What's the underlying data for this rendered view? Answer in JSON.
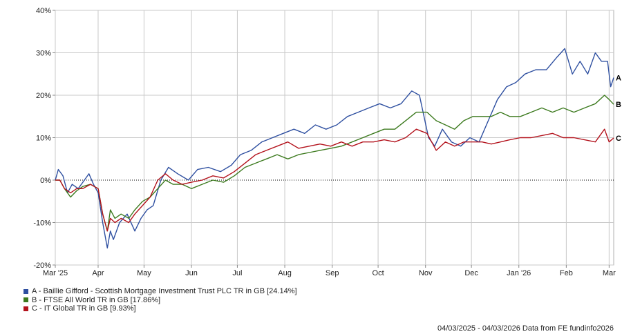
{
  "chart_data": {
    "type": "line",
    "y_ticks": [
      "40%",
      "30%",
      "20%",
      "10%",
      "0%",
      "-10%",
      "-20%"
    ],
    "ylim": [
      -20,
      40
    ],
    "grid": true,
    "x_ticks": [
      {
        "label": "Mar '25",
        "date": "2025-03-04"
      },
      {
        "label": "Apr",
        "date": "2025-04-01"
      },
      {
        "label": "May",
        "date": "2025-05-01"
      },
      {
        "label": "Jun",
        "date": "2025-06-01"
      },
      {
        "label": "Jul",
        "date": "2025-07-01"
      },
      {
        "label": "Aug",
        "date": "2025-08-01"
      },
      {
        "label": "Sep",
        "date": "2025-09-01"
      },
      {
        "label": "Oct",
        "date": "2025-10-01"
      },
      {
        "label": "Nov",
        "date": "2025-11-01"
      },
      {
        "label": "Dec",
        "date": "2025-12-01"
      },
      {
        "label": "Jan '26",
        "date": "2026-01-01"
      },
      {
        "label": "Feb",
        "date": "2026-02-01"
      },
      {
        "label": "Mar",
        "date": "2026-03-01"
      }
    ],
    "xlim": [
      "2025-03-04",
      "2026-03-04"
    ],
    "series": [
      {
        "tag": "A",
        "name": "A - Baillie Gifford - Scottish Mortgage Investment Trust PLC TR in GB [24.14%]",
        "color": "#2e4fa0",
        "points": [
          [
            "2025-03-04",
            0
          ],
          [
            "2025-03-06",
            2.5
          ],
          [
            "2025-03-09",
            1
          ],
          [
            "2025-03-12",
            -3
          ],
          [
            "2025-03-15",
            -1
          ],
          [
            "2025-03-19",
            -2
          ],
          [
            "2025-03-23",
            0
          ],
          [
            "2025-03-26",
            1.5
          ],
          [
            "2025-03-29",
            -1
          ],
          [
            "2025-04-01",
            -3
          ],
          [
            "2025-04-04",
            -10
          ],
          [
            "2025-04-07",
            -16
          ],
          [
            "2025-04-09",
            -12
          ],
          [
            "2025-04-11",
            -14
          ],
          [
            "2025-04-15",
            -10
          ],
          [
            "2025-04-20",
            -8
          ],
          [
            "2025-04-25",
            -12
          ],
          [
            "2025-04-29",
            -9
          ],
          [
            "2025-05-03",
            -7
          ],
          [
            "2025-05-07",
            -6
          ],
          [
            "2025-05-12",
            0
          ],
          [
            "2025-05-17",
            3
          ],
          [
            "2025-05-23",
            1.5
          ],
          [
            "2025-05-30",
            0
          ],
          [
            "2025-06-05",
            2.5
          ],
          [
            "2025-06-12",
            3
          ],
          [
            "2025-06-20",
            2
          ],
          [
            "2025-06-27",
            3.5
          ],
          [
            "2025-07-03",
            6
          ],
          [
            "2025-07-10",
            7
          ],
          [
            "2025-07-17",
            9
          ],
          [
            "2025-07-24",
            10
          ],
          [
            "2025-07-31",
            11
          ],
          [
            "2025-08-07",
            12
          ],
          [
            "2025-08-14",
            11
          ],
          [
            "2025-08-21",
            13
          ],
          [
            "2025-08-28",
            12
          ],
          [
            "2025-09-04",
            13
          ],
          [
            "2025-09-11",
            15
          ],
          [
            "2025-09-18",
            16
          ],
          [
            "2025-09-25",
            17
          ],
          [
            "2025-10-02",
            18
          ],
          [
            "2025-10-09",
            17
          ],
          [
            "2025-10-16",
            18
          ],
          [
            "2025-10-23",
            21
          ],
          [
            "2025-10-28",
            20
          ],
          [
            "2025-11-03",
            10
          ],
          [
            "2025-11-07",
            8
          ],
          [
            "2025-11-12",
            12
          ],
          [
            "2025-11-18",
            9
          ],
          [
            "2025-11-24",
            8
          ],
          [
            "2025-11-30",
            10
          ],
          [
            "2025-12-06",
            9
          ],
          [
            "2025-12-12",
            14
          ],
          [
            "2025-12-18",
            19
          ],
          [
            "2025-12-24",
            22
          ],
          [
            "2025-12-30",
            23
          ],
          [
            "2026-01-05",
            25
          ],
          [
            "2026-01-12",
            26
          ],
          [
            "2026-01-19",
            26
          ],
          [
            "2026-01-26",
            29
          ],
          [
            "2026-01-31",
            31
          ],
          [
            "2026-02-05",
            25
          ],
          [
            "2026-02-10",
            28
          ],
          [
            "2026-02-15",
            25
          ],
          [
            "2026-02-20",
            30
          ],
          [
            "2026-02-24",
            28
          ],
          [
            "2026-02-28",
            28
          ],
          [
            "2026-03-02",
            22
          ],
          [
            "2026-03-04",
            24.14
          ]
        ]
      },
      {
        "tag": "B",
        "name": "B - FTSE All World TR in GB [17.86%]",
        "color": "#3c7a1e",
        "points": [
          [
            "2025-03-04",
            0
          ],
          [
            "2025-03-07",
            0
          ],
          [
            "2025-03-10",
            -2
          ],
          [
            "2025-03-14",
            -4
          ],
          [
            "2025-03-18",
            -2.5
          ],
          [
            "2025-03-22",
            -1.5
          ],
          [
            "2025-03-27",
            -1
          ],
          [
            "2025-04-01",
            -2
          ],
          [
            "2025-04-04",
            -8
          ],
          [
            "2025-04-07",
            -12
          ],
          [
            "2025-04-09",
            -7
          ],
          [
            "2025-04-12",
            -9
          ],
          [
            "2025-04-16",
            -8
          ],
          [
            "2025-04-21",
            -9
          ],
          [
            "2025-04-25",
            -7
          ],
          [
            "2025-04-30",
            -5
          ],
          [
            "2025-05-05",
            -4
          ],
          [
            "2025-05-10",
            -2
          ],
          [
            "2025-05-15",
            0
          ],
          [
            "2025-05-20",
            -1
          ],
          [
            "2025-05-26",
            -1
          ],
          [
            "2025-06-01",
            -2
          ],
          [
            "2025-06-08",
            -1
          ],
          [
            "2025-06-15",
            0
          ],
          [
            "2025-06-22",
            -0.5
          ],
          [
            "2025-06-29",
            1
          ],
          [
            "2025-07-06",
            3
          ],
          [
            "2025-07-13",
            4
          ],
          [
            "2025-07-20",
            5
          ],
          [
            "2025-07-27",
            6
          ],
          [
            "2025-08-03",
            5
          ],
          [
            "2025-08-10",
            6
          ],
          [
            "2025-08-17",
            6.5
          ],
          [
            "2025-08-24",
            7
          ],
          [
            "2025-08-31",
            7.5
          ],
          [
            "2025-09-07",
            8
          ],
          [
            "2025-09-14",
            9
          ],
          [
            "2025-09-21",
            10
          ],
          [
            "2025-09-28",
            11
          ],
          [
            "2025-10-05",
            12
          ],
          [
            "2025-10-12",
            12
          ],
          [
            "2025-10-19",
            14
          ],
          [
            "2025-10-26",
            16
          ],
          [
            "2025-11-02",
            16
          ],
          [
            "2025-11-08",
            14
          ],
          [
            "2025-11-14",
            13
          ],
          [
            "2025-11-20",
            12
          ],
          [
            "2025-11-26",
            14
          ],
          [
            "2025-12-02",
            15
          ],
          [
            "2025-12-08",
            15
          ],
          [
            "2025-12-14",
            15
          ],
          [
            "2025-12-20",
            16
          ],
          [
            "2025-12-26",
            15
          ],
          [
            "2026-01-02",
            15
          ],
          [
            "2026-01-09",
            16
          ],
          [
            "2026-01-16",
            17
          ],
          [
            "2026-01-23",
            16
          ],
          [
            "2026-01-30",
            17
          ],
          [
            "2026-02-06",
            16
          ],
          [
            "2026-02-13",
            17
          ],
          [
            "2026-02-20",
            18
          ],
          [
            "2026-02-26",
            20
          ],
          [
            "2026-03-01",
            19
          ],
          [
            "2026-03-04",
            17.86
          ]
        ]
      },
      {
        "tag": "C",
        "name": "C - IT Global TR in GB [9.93%]",
        "color": "#b3121c",
        "points": [
          [
            "2025-03-04",
            0
          ],
          [
            "2025-03-07",
            0
          ],
          [
            "2025-03-10",
            -2
          ],
          [
            "2025-03-14",
            -3
          ],
          [
            "2025-03-18",
            -2
          ],
          [
            "2025-03-22",
            -2
          ],
          [
            "2025-03-27",
            -1
          ],
          [
            "2025-04-01",
            -2
          ],
          [
            "2025-04-04",
            -8
          ],
          [
            "2025-04-07",
            -12
          ],
          [
            "2025-04-09",
            -9
          ],
          [
            "2025-04-12",
            -10
          ],
          [
            "2025-04-16",
            -9
          ],
          [
            "2025-04-21",
            -10
          ],
          [
            "2025-04-25",
            -8
          ],
          [
            "2025-04-30",
            -6
          ],
          [
            "2025-05-05",
            -4
          ],
          [
            "2025-05-10",
            0
          ],
          [
            "2025-05-15",
            1.5
          ],
          [
            "2025-05-20",
            0
          ],
          [
            "2025-05-26",
            -1
          ],
          [
            "2025-06-01",
            -0.5
          ],
          [
            "2025-06-08",
            0
          ],
          [
            "2025-06-15",
            1
          ],
          [
            "2025-06-22",
            0.5
          ],
          [
            "2025-06-29",
            2
          ],
          [
            "2025-07-06",
            4
          ],
          [
            "2025-07-13",
            6
          ],
          [
            "2025-07-20",
            7
          ],
          [
            "2025-07-27",
            8
          ],
          [
            "2025-08-03",
            9
          ],
          [
            "2025-08-10",
            7.5
          ],
          [
            "2025-08-17",
            8
          ],
          [
            "2025-08-24",
            8.5
          ],
          [
            "2025-08-31",
            8
          ],
          [
            "2025-09-07",
            9
          ],
          [
            "2025-09-14",
            8
          ],
          [
            "2025-09-21",
            9
          ],
          [
            "2025-09-28",
            9
          ],
          [
            "2025-10-05",
            9.5
          ],
          [
            "2025-10-12",
            9
          ],
          [
            "2025-10-19",
            10
          ],
          [
            "2025-10-26",
            12
          ],
          [
            "2025-11-02",
            11
          ],
          [
            "2025-11-08",
            7
          ],
          [
            "2025-11-14",
            9
          ],
          [
            "2025-11-20",
            8
          ],
          [
            "2025-11-26",
            9
          ],
          [
            "2025-12-02",
            9
          ],
          [
            "2025-12-08",
            9
          ],
          [
            "2025-12-14",
            8.5
          ],
          [
            "2025-12-20",
            9
          ],
          [
            "2025-12-26",
            9.5
          ],
          [
            "2026-01-02",
            10
          ],
          [
            "2026-01-09",
            10
          ],
          [
            "2026-01-16",
            10.5
          ],
          [
            "2026-01-23",
            11
          ],
          [
            "2026-01-30",
            10
          ],
          [
            "2026-02-06",
            10
          ],
          [
            "2026-02-13",
            9.5
          ],
          [
            "2026-02-20",
            9
          ],
          [
            "2026-02-26",
            12
          ],
          [
            "2026-03-01",
            9
          ],
          [
            "2026-03-04",
            9.93
          ]
        ]
      }
    ],
    "footer": "04/03/2025 - 04/03/2026 Data from FE fundinfo2026"
  }
}
